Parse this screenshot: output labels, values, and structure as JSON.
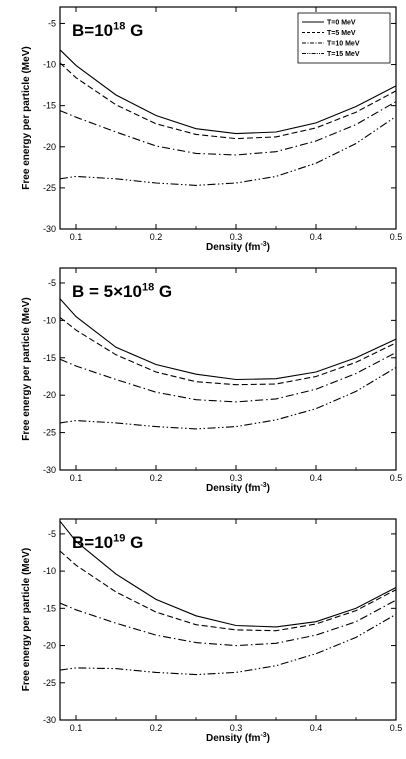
{
  "chart_data": [
    {
      "type": "line",
      "title": "B=10",
      "title_exponent": "18",
      "title_suffix": " G",
      "xlabel": "Density (fm",
      "xlabel_exponent": "-3",
      "xlabel_suffix": ")",
      "ylabel": "Free energy per particle (MeV)",
      "xlim": [
        0.08,
        0.5
      ],
      "ylim": [
        -30,
        -3
      ],
      "xticks": [
        "0.1",
        "0.2",
        "0.3",
        "0.4",
        "0.5"
      ],
      "yticks": [
        "-5",
        "-10",
        "-15",
        "-20",
        "-25",
        "-30"
      ],
      "legend_position": "top-right",
      "x": [
        0.08,
        0.1,
        0.15,
        0.2,
        0.25,
        0.3,
        0.35,
        0.4,
        0.45,
        0.5
      ],
      "series": [
        {
          "name": "T=0 MeV",
          "dash": "solid",
          "values": [
            -8.2,
            -10.1,
            -13.7,
            -16.2,
            -17.8,
            -18.4,
            -18.2,
            -17.1,
            -15.1,
            -12.6
          ]
        },
        {
          "name": "T=5 MeV",
          "dash": "dashed",
          "values": [
            -9.8,
            -11.6,
            -14.9,
            -17.2,
            -18.5,
            -19.0,
            -18.8,
            -17.7,
            -15.8,
            -13.2
          ]
        },
        {
          "name": "T=10 MeV",
          "dash": "dashdot",
          "values": [
            -15.6,
            -16.4,
            -18.2,
            -19.9,
            -20.8,
            -21.0,
            -20.6,
            -19.3,
            -17.3,
            -14.5
          ]
        },
        {
          "name": "T=15 MeV",
          "dash": "dashdotdot",
          "values": [
            -23.9,
            -23.6,
            -23.9,
            -24.4,
            -24.7,
            -24.4,
            -23.6,
            -22.0,
            -19.6,
            -16.3
          ]
        }
      ]
    },
    {
      "type": "line",
      "title": "B = 5×10",
      "title_exponent": "18",
      "title_suffix": " G",
      "xlabel": "Density (fm",
      "xlabel_exponent": "-3",
      "xlabel_suffix": ")",
      "ylabel": "Free energy per particle (MeV)",
      "xlim": [
        0.08,
        0.5
      ],
      "ylim": [
        -30,
        -3
      ],
      "xticks": [
        "0.1",
        "0.2",
        "0.3",
        "0.4",
        "0.5"
      ],
      "yticks": [
        "-5",
        "-10",
        "-15",
        "-20",
        "-25",
        "-30"
      ],
      "x": [
        0.08,
        0.1,
        0.15,
        0.2,
        0.25,
        0.3,
        0.35,
        0.4,
        0.45,
        0.5
      ],
      "series": [
        {
          "dash": "solid",
          "values": [
            -7.1,
            -9.5,
            -13.6,
            -15.9,
            -17.2,
            -17.9,
            -17.8,
            -16.9,
            -15.0,
            -12.5
          ]
        },
        {
          "dash": "dashed",
          "values": [
            -9.6,
            -11.3,
            -14.6,
            -16.9,
            -18.2,
            -18.6,
            -18.5,
            -17.5,
            -15.6,
            -13.0
          ]
        },
        {
          "dash": "dashdot",
          "values": [
            -15.2,
            -16.1,
            -17.9,
            -19.6,
            -20.6,
            -20.9,
            -20.5,
            -19.2,
            -17.1,
            -14.3
          ]
        },
        {
          "dash": "dashdotdot",
          "values": [
            -23.7,
            -23.4,
            -23.7,
            -24.2,
            -24.5,
            -24.2,
            -23.3,
            -21.8,
            -19.5,
            -16.3
          ]
        }
      ]
    },
    {
      "type": "line",
      "title": "B=10",
      "title_exponent": "19",
      "title_suffix": " G",
      "xlabel": "Density (fm",
      "xlabel_exponent": "-3",
      "xlabel_suffix": ")",
      "ylabel": "Free energy per particle (MeV)",
      "xlim": [
        0.08,
        0.5
      ],
      "ylim": [
        -30,
        -3
      ],
      "xticks": [
        "0.1",
        "0.2",
        "0.3",
        "0.4",
        "0.5"
      ],
      "yticks": [
        "-5",
        "-10",
        "-15",
        "-20",
        "-25",
        "-30"
      ],
      "x": [
        0.08,
        0.1,
        0.15,
        0.2,
        0.25,
        0.3,
        0.35,
        0.4,
        0.45,
        0.5
      ],
      "series": [
        {
          "dash": "solid",
          "values": [
            -3.3,
            -6.0,
            -10.4,
            -13.8,
            -16.0,
            -17.3,
            -17.5,
            -16.8,
            -15.0,
            -12.2
          ]
        },
        {
          "dash": "dashed",
          "values": [
            -7.3,
            -9.2,
            -12.8,
            -15.5,
            -17.2,
            -17.9,
            -18.0,
            -17.1,
            -15.3,
            -12.5
          ]
        },
        {
          "dash": "dashdot",
          "values": [
            -14.3,
            -15.2,
            -17.0,
            -18.6,
            -19.6,
            -20.0,
            -19.7,
            -18.6,
            -16.8,
            -13.9
          ]
        },
        {
          "dash": "dashdotdot",
          "values": [
            -23.3,
            -23.0,
            -23.1,
            -23.6,
            -23.9,
            -23.6,
            -22.7,
            -21.1,
            -18.9,
            -15.8
          ]
        }
      ]
    }
  ]
}
